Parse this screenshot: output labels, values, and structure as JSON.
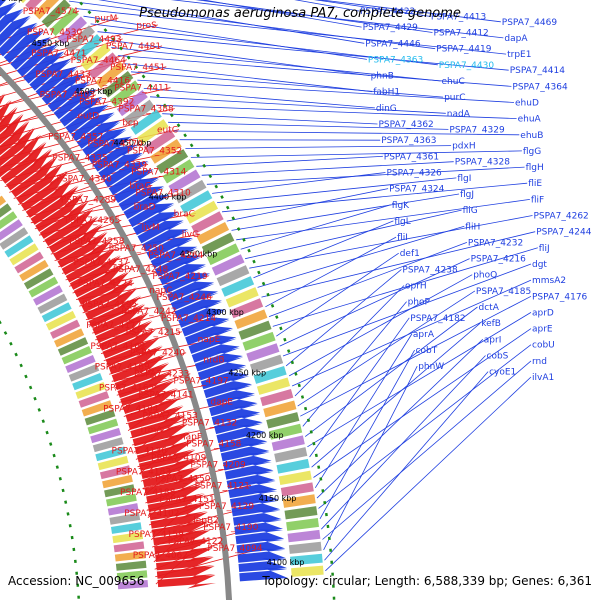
{
  "title": "Pseudomonas aeruginosa PA7, complete genome",
  "footer": {
    "accession": "Accession: NC_009656",
    "topology": "Topology: circular; Length: 6,588,339 bp; Genes: 6,361"
  },
  "colors": {
    "forward_genes": "#e41a1c",
    "reverse_genes": "#1f3fe0",
    "highlight_label": "#22bbee",
    "backbone": "#888888",
    "dotted_track": "#1a8a1a"
  },
  "ruler": {
    "unit": "kbp",
    "ticks": [
      "4600 kbp",
      "4550 kbp",
      "4500 kbp",
      "4450 kbp",
      "4400 kbp",
      "4350 kbp",
      "4300 kbp",
      "4250 kbp",
      "4200 kbp",
      "4150 kbp",
      "4100 kbp"
    ]
  },
  "left_labels": [
    "PSPA7_4574",
    "purM",
    "proS",
    "PSPA7_4530",
    "PSPA7_4493",
    "PSPA7_4481",
    "PSPA7_4471",
    "PSPA7_4464",
    "PSPA7_4451",
    "PSPA7_4433",
    "PSPA7_4416",
    "PSPA7_4411",
    "PSPA7_4403",
    "PSPA7_4392",
    "PSPA7_4388",
    "eutD",
    "bcp",
    "eutC",
    "PSPA7_4357",
    "PSPA7_4370",
    "PSPA7_4352",
    "PSPA7_4335",
    "PSPA7_4339",
    "PSPA7_4314",
    "PSPA7_4340",
    "braG",
    "PSPA7_4310",
    "PSPA7_4289",
    "braD",
    "braC",
    "PSPA7_4265",
    "livM",
    "livG",
    "PSPA7_4258",
    "PSPA7_4250",
    "PSPA7_4264",
    "PSPA7_4237",
    "PSPA7_4248",
    "PSPA7_4219",
    "PSPA7_4224",
    "napC",
    "PSPA7_4246",
    "PSPA7_4195",
    "PSPA7_4242",
    "PSPA7_4214",
    "PSPA7_4177",
    "PSPA7_4215",
    "napE",
    "PSPA7_4162",
    "PSPA7_4240",
    "nrdB",
    "PSPA7_4189",
    "PSPA7_4233",
    "PSPA7_4197",
    "PSPA7_4165",
    "PSPA7_4141",
    "dapE",
    "PSPA7_4184",
    "PSPA7_4153",
    "PSPA7_4132",
    "rrmA",
    "napF",
    "PSPA7_4158",
    "PSPA7_4136",
    "PSPA7_4109",
    "PSPA7_4209",
    "PSPA7_4183",
    "PSPA7_4150",
    "PSPA7_4121",
    "PSPA7_4188",
    "PSPA7_4151",
    "PSPA7_4129",
    "PSPA7_4102",
    "lepB2",
    "PSPA7_4190",
    "PSPA7_4159",
    "PSPA7_4122",
    "PSPA7_4094",
    "PSPA7_4062"
  ],
  "right_labels": [
    "PSPA7_4422",
    "PSPA7_4413",
    "PSPA7_4469",
    "PSPA7_4429",
    "PSPA7_4412",
    "dapA",
    "PSPA7_4446",
    "PSPA7_4419",
    "trpE1",
    "PSPA7_4363",
    "PSPA7_4430",
    "PSPA7_4414",
    "phnB",
    "ehuC",
    "PSPA7_4364",
    "fabH1",
    "purC",
    "ehuD",
    "dinG",
    "nadA",
    "ehuA",
    "PSPA7_4362",
    "PSPA7_4329",
    "ehuB",
    "PSPA7_4363",
    "pdxH",
    "flgG",
    "PSPA7_4361",
    "PSPA7_4328",
    "flgH",
    "PSPA7_4326",
    "flgI",
    "fliE",
    "PSPA7_4324",
    "flgJ",
    "fliF",
    "flgK",
    "fliG",
    "PSPA7_4262",
    "flgL",
    "fliH",
    "PSPA7_4244",
    "fliI",
    "PSPA7_4232",
    "fliJ",
    "def1",
    "PSPA7_4216",
    "dgt",
    "PSPA7_4238",
    "phoQ",
    "mmsA2",
    "oprH",
    "PSPA7_4185",
    "PSPA7_4176",
    "phoP",
    "dctA",
    "aprD",
    "PSPA7_4182",
    "kefB",
    "aprE",
    "aprA",
    "aprI",
    "cobU",
    "cobT",
    "cobS",
    "rnd",
    "phnW",
    "cyoE1",
    "ilvA1"
  ]
}
